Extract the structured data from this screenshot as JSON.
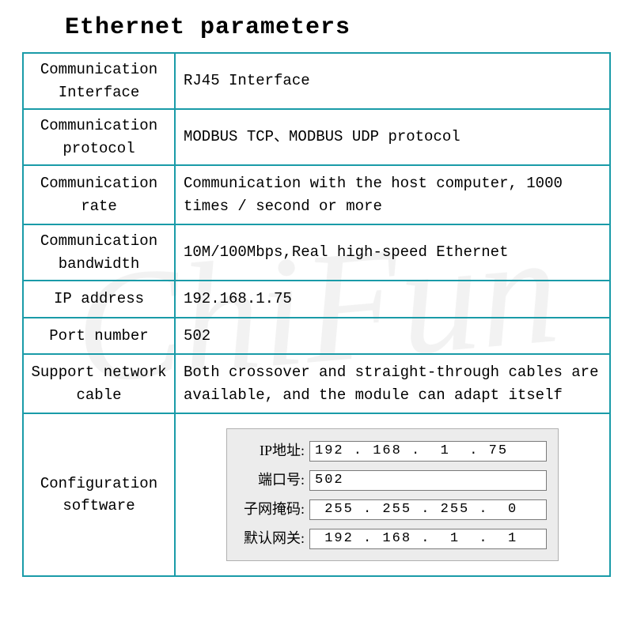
{
  "title": "Ethernet parameters",
  "watermark": "ChiFun",
  "table": {
    "rows": [
      {
        "label": "Communication Interface",
        "value": "RJ45 Interface"
      },
      {
        "label": "Communication protocol",
        "value": "MODBUS TCP、MODBUS UDP protocol"
      },
      {
        "label": "Communication rate",
        "value": "Communication with the host computer, 1000 times / second or more"
      },
      {
        "label": "Communication bandwidth",
        "value": "10M/100Mbps,Real high-speed Ethernet"
      },
      {
        "label": "IP address",
        "value": "192.168.1.75"
      },
      {
        "label": "Port number",
        "value": "502"
      },
      {
        "label": "Support network cable",
        "value": "Both crossover and straight-through cables are available, and the module can adapt itself"
      }
    ],
    "config_row_label": "Configuration software"
  },
  "config_box": {
    "fields": [
      {
        "label": "IP地址:",
        "value": "192 . 168 .  1  . 75"
      },
      {
        "label": "端口号:",
        "value": "502"
      },
      {
        "label": "子网掩码:",
        "value": " 255 . 255 . 255 .  0"
      },
      {
        "label": "默认网关:",
        "value": " 192 . 168 .  1  .  1"
      }
    ]
  },
  "colors": {
    "border": "#1a9ba8",
    "bg": "#ffffff",
    "config_bg": "#ececec",
    "config_border": "#b0b0b0",
    "input_border": "#7a7a7a"
  }
}
